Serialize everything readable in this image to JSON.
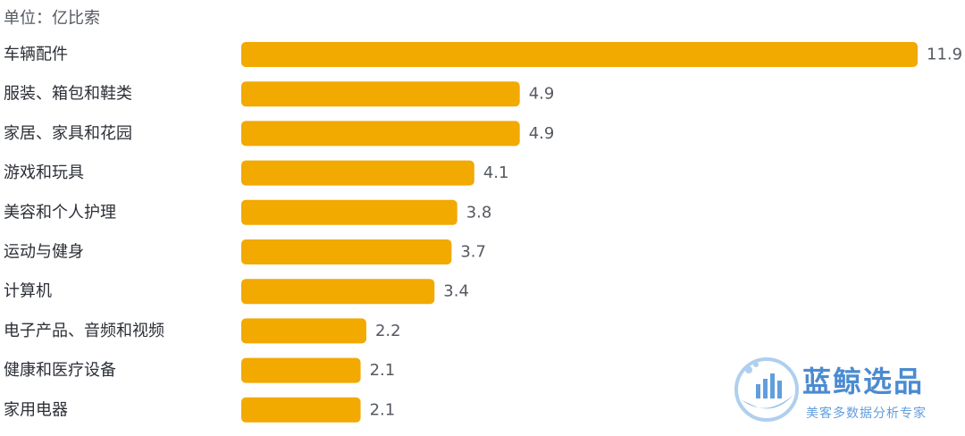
{
  "unit_label": "单位：亿比索",
  "colors": {
    "bar": "#F2A900",
    "watermark": "#1f6fc6"
  },
  "chart_data": {
    "type": "bar",
    "orientation": "horizontal",
    "categories": [
      "车辆配件",
      "服装、箱包和鞋类",
      "家居、家具和花园",
      "游戏和玩具",
      "美容和个人护理",
      "运动与健身",
      "计算机",
      "电子产品、音频和视频",
      "健康和医疗设备",
      "家用电器"
    ],
    "values": [
      11.9,
      4.9,
      4.9,
      4.1,
      3.8,
      3.7,
      3.4,
      2.2,
      2.1,
      2.1
    ],
    "value_labels": [
      "11.9",
      "4.9",
      "4.9",
      "4.1",
      "3.8",
      "3.7",
      "3.4",
      "2.2",
      "2.1",
      "2.1"
    ],
    "xlim": [
      0,
      11.9
    ],
    "grid": false,
    "legend": "none"
  },
  "watermark": {
    "title": "蓝鲸选品",
    "subtitle": "美客多数据分析专家",
    "icon": "whale-bar-chart-logo"
  }
}
